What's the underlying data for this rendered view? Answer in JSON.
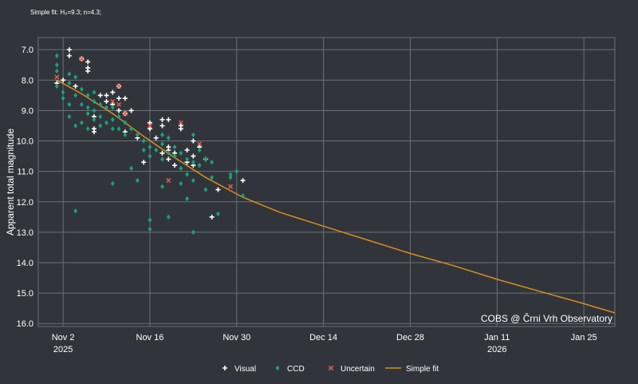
{
  "chart_data": {
    "type": "scatter",
    "subtitle": "Simple fit: H₀=9.3; n=4.3;",
    "ylabel": "Apparent total magnitude",
    "xlabel": "",
    "watermark": "COBS @ Črni Vrh Observatory",
    "x_range": [
      "2025-10-29",
      "2026-01-30"
    ],
    "y_range": [
      16.1,
      6.6
    ],
    "y_inverted": true,
    "grid": true,
    "legend_position": "bottom",
    "x_ticks": [
      {
        "date": "2025-11-02",
        "label": "Nov 2",
        "sublabel": "2025"
      },
      {
        "date": "2025-11-16",
        "label": "Nov 16",
        "sublabel": ""
      },
      {
        "date": "2025-11-30",
        "label": "Nov 30",
        "sublabel": ""
      },
      {
        "date": "2025-12-14",
        "label": "Dec 14",
        "sublabel": ""
      },
      {
        "date": "2025-12-28",
        "label": "Dec 28",
        "sublabel": ""
      },
      {
        "date": "2026-01-11",
        "label": "Jan 11",
        "sublabel": "2026"
      },
      {
        "date": "2026-01-25",
        "label": "Jan 25",
        "sublabel": ""
      }
    ],
    "y_ticks": [
      "7.0",
      "8.0",
      "9.0",
      "10.0",
      "11.0",
      "12.0",
      "13.0",
      "14.0",
      "15.0",
      "16.0"
    ],
    "colors": {
      "background": "#31353b",
      "grid": "#6b7076",
      "visual": "#ffffff",
      "ccd": "#1aa37a",
      "uncertain": "#e05a4a",
      "fit": "#d88e1c"
    },
    "legend": [
      {
        "name": "Visual",
        "marker": "plus",
        "color": "#ffffff"
      },
      {
        "name": "CCD",
        "marker": "diamond",
        "color": "#1aa37a"
      },
      {
        "name": "Uncertain",
        "marker": "cross",
        "color": "#e05a4a"
      },
      {
        "name": "Simple fit",
        "marker": "line",
        "color": "#d88e1c"
      }
    ],
    "series": [
      {
        "name": "Visual",
        "points": [
          [
            "2025-11-01",
            8.1
          ],
          [
            "2025-11-02",
            8.0
          ],
          [
            "2025-11-03",
            7.2
          ],
          [
            "2025-11-03",
            7.0
          ],
          [
            "2025-11-04",
            8.2
          ],
          [
            "2025-11-05",
            7.3
          ],
          [
            "2025-11-06",
            7.4
          ],
          [
            "2025-11-06",
            7.6
          ],
          [
            "2025-11-06",
            7.7
          ],
          [
            "2025-11-07",
            9.2
          ],
          [
            "2025-11-07",
            9.6
          ],
          [
            "2025-11-07",
            9.7
          ],
          [
            "2025-11-08",
            8.5
          ],
          [
            "2025-11-09",
            8.5
          ],
          [
            "2025-11-09",
            8.7
          ],
          [
            "2025-11-10",
            8.4
          ],
          [
            "2025-11-10",
            8.8
          ],
          [
            "2025-11-11",
            8.2
          ],
          [
            "2025-11-11",
            8.6
          ],
          [
            "2025-11-11",
            9.0
          ],
          [
            "2025-11-12",
            8.6
          ],
          [
            "2025-11-12",
            9.1
          ],
          [
            "2025-11-12",
            9.7
          ],
          [
            "2025-11-13",
            9.0
          ],
          [
            "2025-11-14",
            9.9
          ],
          [
            "2025-11-15",
            10.7
          ],
          [
            "2025-11-16",
            9.4
          ],
          [
            "2025-11-16",
            9.6
          ],
          [
            "2025-11-17",
            9.9
          ],
          [
            "2025-11-18",
            10.4
          ],
          [
            "2025-11-18",
            9.3
          ],
          [
            "2025-11-18",
            9.5
          ],
          [
            "2025-11-19",
            9.3
          ],
          [
            "2025-11-19",
            10.2
          ],
          [
            "2025-11-19",
            10.3
          ],
          [
            "2025-11-19",
            10.6
          ],
          [
            "2025-11-20",
            10.8
          ],
          [
            "2025-11-20",
            10.4
          ],
          [
            "2025-11-21",
            9.5
          ],
          [
            "2025-11-21",
            9.6
          ],
          [
            "2025-11-22",
            10.3
          ],
          [
            "2025-11-22",
            10.7
          ],
          [
            "2025-11-23",
            10.5
          ],
          [
            "2025-11-23",
            10.8
          ],
          [
            "2025-11-23",
            10.0
          ],
          [
            "2025-11-24",
            10.2
          ],
          [
            "2025-11-25",
            10.6
          ],
          [
            "2025-11-26",
            12.5
          ],
          [
            "2025-11-27",
            11.6
          ],
          [
            "2025-12-01",
            11.3
          ]
        ]
      },
      {
        "name": "CCD",
        "points": [
          [
            "2025-11-01",
            7.2
          ],
          [
            "2025-11-01",
            7.5
          ],
          [
            "2025-11-01",
            7.7
          ],
          [
            "2025-11-01",
            8.2
          ],
          [
            "2025-11-02",
            8.4
          ],
          [
            "2025-11-02",
            8.6
          ],
          [
            "2025-11-03",
            7.8
          ],
          [
            "2025-11-03",
            8.1
          ],
          [
            "2025-11-03",
            8.8
          ],
          [
            "2025-11-03",
            9.2
          ],
          [
            "2025-11-04",
            7.9
          ],
          [
            "2025-11-04",
            8.5
          ],
          [
            "2025-11-04",
            9.5
          ],
          [
            "2025-11-04",
            12.3
          ],
          [
            "2025-11-05",
            8.3
          ],
          [
            "2025-11-05",
            8.8
          ],
          [
            "2025-11-05",
            9.4
          ],
          [
            "2025-11-06",
            8.5
          ],
          [
            "2025-11-06",
            8.9
          ],
          [
            "2025-11-06",
            9.1
          ],
          [
            "2025-11-06",
            9.6
          ],
          [
            "2025-11-07",
            8.4
          ],
          [
            "2025-11-07",
            8.7
          ],
          [
            "2025-11-07",
            9.0
          ],
          [
            "2025-11-07",
            9.3
          ],
          [
            "2025-11-08",
            8.8
          ],
          [
            "2025-11-08",
            9.2
          ],
          [
            "2025-11-08",
            9.5
          ],
          [
            "2025-11-09",
            8.9
          ],
          [
            "2025-11-09",
            9.4
          ],
          [
            "2025-11-10",
            8.9
          ],
          [
            "2025-11-10",
            9.3
          ],
          [
            "2025-11-10",
            9.6
          ],
          [
            "2025-11-10",
            11.4
          ],
          [
            "2025-11-11",
            9.2
          ],
          [
            "2025-11-11",
            9.6
          ],
          [
            "2025-11-12",
            9.4
          ],
          [
            "2025-11-12",
            9.8
          ],
          [
            "2025-11-13",
            9.6
          ],
          [
            "2025-11-13",
            10.9
          ],
          [
            "2025-11-14",
            9.8
          ],
          [
            "2025-11-14",
            11.3
          ],
          [
            "2025-11-15",
            10.0
          ],
          [
            "2025-11-15",
            10.3
          ],
          [
            "2025-11-16",
            10.2
          ],
          [
            "2025-11-16",
            10.5
          ],
          [
            "2025-11-16",
            12.6
          ],
          [
            "2025-11-16",
            12.9
          ],
          [
            "2025-11-17",
            10.3
          ],
          [
            "2025-11-18",
            9.8
          ],
          [
            "2025-11-18",
            10.1
          ],
          [
            "2025-11-18",
            10.6
          ],
          [
            "2025-11-18",
            11.5
          ],
          [
            "2025-11-19",
            9.9
          ],
          [
            "2025-11-19",
            10.4
          ],
          [
            "2025-11-19",
            12.5
          ],
          [
            "2025-11-20",
            10.2
          ],
          [
            "2025-11-20",
            10.5
          ],
          [
            "2025-11-21",
            10.4
          ],
          [
            "2025-11-21",
            10.9
          ],
          [
            "2025-11-21",
            11.4
          ],
          [
            "2025-11-22",
            10.6
          ],
          [
            "2025-11-22",
            11.1
          ],
          [
            "2025-11-22",
            11.9
          ],
          [
            "2025-11-23",
            9.8
          ],
          [
            "2025-11-23",
            10.7
          ],
          [
            "2025-11-23",
            11.3
          ],
          [
            "2025-11-23",
            13.0
          ],
          [
            "2025-11-24",
            10.3
          ],
          [
            "2025-11-24",
            10.8
          ],
          [
            "2025-11-25",
            10.6
          ],
          [
            "2025-11-25",
            11.6
          ],
          [
            "2025-11-26",
            10.7
          ],
          [
            "2025-11-26",
            11.2
          ],
          [
            "2025-11-27",
            12.4
          ],
          [
            "2025-11-29",
            11.1
          ],
          [
            "2025-11-29",
            11.2
          ],
          [
            "2025-11-30",
            11.0
          ],
          [
            "2025-12-01",
            11.8
          ]
        ]
      },
      {
        "name": "Uncertain",
        "points": [
          [
            "2025-11-01",
            7.9
          ],
          [
            "2025-11-05",
            7.3
          ],
          [
            "2025-11-10",
            8.7
          ],
          [
            "2025-11-11",
            8.2
          ],
          [
            "2025-11-11",
            8.8
          ],
          [
            "2025-11-12",
            9.1
          ],
          [
            "2025-11-16",
            9.5
          ],
          [
            "2025-11-19",
            11.3
          ],
          [
            "2025-11-21",
            9.4
          ],
          [
            "2025-11-24",
            10.1
          ],
          [
            "2025-11-29",
            11.5
          ]
        ]
      },
      {
        "name": "Simple fit",
        "points": [
          [
            "2025-11-01",
            8.0
          ],
          [
            "2025-11-05",
            8.45
          ],
          [
            "2025-11-10",
            9.1
          ],
          [
            "2025-11-15",
            9.85
          ],
          [
            "2025-11-20",
            10.55
          ],
          [
            "2025-11-25",
            11.2
          ],
          [
            "2025-12-01",
            11.85
          ],
          [
            "2025-12-07",
            12.35
          ],
          [
            "2025-12-14",
            12.8
          ],
          [
            "2025-12-21",
            13.25
          ],
          [
            "2025-12-28",
            13.7
          ],
          [
            "2026-01-04",
            14.1
          ],
          [
            "2026-01-11",
            14.55
          ],
          [
            "2026-01-18",
            14.95
          ],
          [
            "2026-01-25",
            15.35
          ],
          [
            "2026-01-30",
            15.65
          ]
        ]
      }
    ]
  }
}
